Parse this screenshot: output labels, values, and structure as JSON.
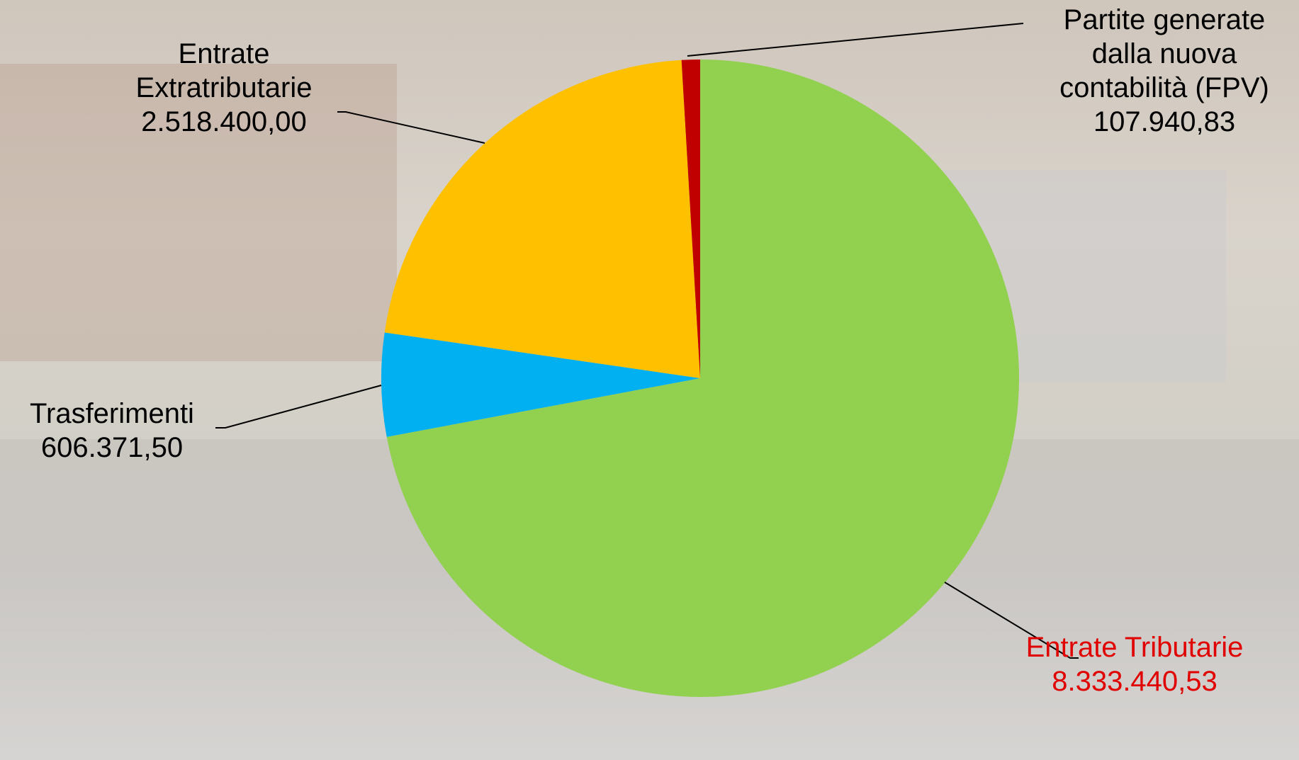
{
  "chart_data": {
    "type": "pie",
    "categories": [
      "Entrate Tributarie",
      "Trasferimenti",
      "Entrate Extratributarie",
      "Partite generate dalla nuova contabilità (FPV)"
    ],
    "values": [
      8333440.53,
      606371.5,
      2518400.0,
      107940.83
    ],
    "value_labels": [
      "8.333.440,53",
      "606.371,50",
      "2.518.400,00",
      "107.940,83"
    ],
    "colors": [
      "#92d050",
      "#00b0f0",
      "#ffc000",
      "#c00000"
    ],
    "label_colors": [
      "#e00000",
      "#000000",
      "#000000",
      "#000000"
    ]
  }
}
